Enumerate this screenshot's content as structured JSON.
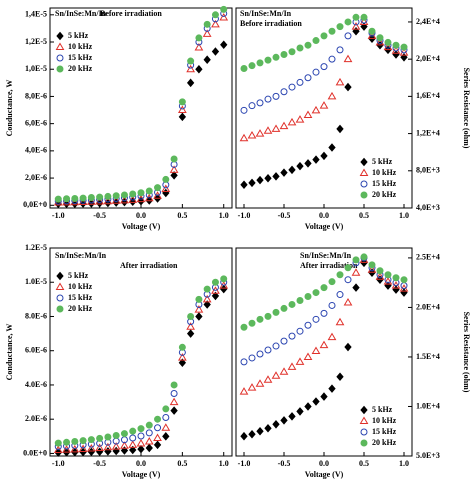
{
  "chart_data": [
    {
      "type": "scatter",
      "annotations": [
        "Sn/InSe:Mn/In",
        "Before irradiation"
      ],
      "xlabel": "Voltage (V)",
      "ylabel": "Conductance, W",
      "y_axis_side": "left",
      "legend": "upper left",
      "x": [
        -1,
        -0.9,
        -0.8,
        -0.7,
        -0.6,
        -0.5,
        -0.4,
        -0.3,
        -0.2,
        -0.1,
        0,
        0.1,
        0.2,
        0.3,
        0.4,
        0.5,
        0.6,
        0.7,
        0.8,
        0.9,
        1
      ],
      "xlim": [
        -1.1,
        1.1
      ],
      "xticks": [
        {
          "value": -1,
          "label": "-1.0"
        },
        -0.5,
        {
          "value": 0,
          "label": "0.0"
        },
        0.5,
        {
          "value": 1,
          "label": "1.0"
        }
      ],
      "ylim": [
        -2e-07,
        1.45e-05
      ],
      "yticks": [
        {
          "value": 0,
          "label": "0,0E+0"
        },
        {
          "value": 2e-06,
          "label": "2,0E-6"
        },
        {
          "value": 4e-06,
          "label": "4,0E-6"
        },
        {
          "value": 6e-06,
          "label": "6,0E-6"
        },
        {
          "value": 8e-06,
          "label": "8,0E-6"
        },
        {
          "value": 1e-05,
          "label": "1,0E-5"
        },
        {
          "value": 1.2e-05,
          "label": "1,2E-5"
        },
        {
          "value": 1.4e-05,
          "label": "1,4E-5"
        }
      ],
      "series": [
        {
          "name": "5 kHz",
          "color": "#000000",
          "marker": "diamond",
          "filled": true,
          "values": [
            1e-07,
            1e-07,
            1e-07,
            1.2e-07,
            1.3e-07,
            1.5e-07,
            1.7e-07,
            2e-07,
            2.3e-07,
            2.6e-07,
            3e-07,
            3.5e-07,
            5e-07,
            9e-07,
            2.2e-06,
            6.5e-06,
            9e-06,
            1e-05,
            1.07e-05,
            1.13e-05,
            1.18e-05
          ]
        },
        {
          "name": "10 kHz",
          "color": "#e0302a",
          "marker": "triangle",
          "filled": false,
          "values": [
            2e-07,
            2.1e-07,
            2.2e-07,
            2.4e-07,
            2.6e-07,
            2.8e-07,
            3e-07,
            3.3e-07,
            3.6e-07,
            4e-07,
            4.5e-07,
            5.2e-07,
            7e-07,
            1.2e-06,
            2.6e-06,
            7e-06,
            1e-05,
            1.16e-05,
            1.26e-05,
            1.33e-05,
            1.38e-05
          ]
        },
        {
          "name": "15 kHz",
          "color": "#2a44b0",
          "marker": "circle",
          "filled": false,
          "values": [
            3e-07,
            3.2e-07,
            3.4e-07,
            3.6e-07,
            3.9e-07,
            4.2e-07,
            4.6e-07,
            5e-07,
            5.5e-07,
            6e-07,
            6.7e-07,
            7.6e-07,
            9.5e-07,
            1.5e-06,
            3e-06,
            7.3e-06,
            1.03e-05,
            1.2e-05,
            1.3e-05,
            1.37e-05,
            1.41e-05
          ]
        },
        {
          "name": "20 kHz",
          "color": "#5cb85c",
          "marker": "circle",
          "filled": true,
          "values": [
            4.5e-07,
            4.8e-07,
            5e-07,
            5.3e-07,
            5.7e-07,
            6e-07,
            6.5e-07,
            7e-07,
            7.6e-07,
            8.3e-07,
            9.2e-07,
            1.05e-06,
            1.3e-06,
            1.9e-06,
            3.4e-06,
            7.6e-06,
            1.06e-05,
            1.23e-05,
            1.33e-05,
            1.4e-05,
            1.44e-05
          ]
        }
      ]
    },
    {
      "type": "scatter",
      "annotations": [
        "Sn/InSe:Mn/In",
        "Before irradiation"
      ],
      "xlabel": "Voltage (V)",
      "ylabel": "Series Resistance (ohm)",
      "y_axis_side": "right",
      "legend": "lower right",
      "x": [
        -1,
        -0.9,
        -0.8,
        -0.7,
        -0.6,
        -0.5,
        -0.4,
        -0.3,
        -0.2,
        -0.1,
        0,
        0.1,
        0.2,
        0.3,
        0.4,
        0.5,
        0.6,
        0.7,
        0.8,
        0.9,
        1
      ],
      "xlim": [
        -1.1,
        1.1
      ],
      "xticks": [
        {
          "value": -1,
          "label": "-1.0"
        },
        -0.5,
        {
          "value": 0,
          "label": "0.0"
        },
        0.5,
        {
          "value": 1,
          "label": "1.0"
        }
      ],
      "ylim": [
        4000,
        25500
      ],
      "yticks": [
        {
          "value": 4000,
          "label": "4,0E+3"
        },
        {
          "value": 8000,
          "label": "8,0E+3"
        },
        {
          "value": 12000,
          "label": "1,2E+4"
        },
        {
          "value": 16000,
          "label": "1,6E+4"
        },
        {
          "value": 20000,
          "label": "2,0E+4"
        },
        {
          "value": 24000,
          "label": "2,4E+4"
        }
      ],
      "series": [
        {
          "name": "5 kHz",
          "color": "#000000",
          "marker": "diamond",
          "filled": true,
          "values": [
            6500,
            6700,
            7000,
            7200,
            7400,
            7800,
            8100,
            8500,
            8800,
            9200,
            9600,
            10500,
            12500,
            17000,
            23000,
            23500,
            22200,
            21500,
            21000,
            20500,
            20200
          ]
        },
        {
          "name": "10 kHz",
          "color": "#e0302a",
          "marker": "triangle",
          "filled": false,
          "values": [
            11500,
            11800,
            12000,
            12300,
            12500,
            12800,
            13200,
            13500,
            14000,
            14500,
            15000,
            16000,
            17500,
            20000,
            23500,
            24000,
            22500,
            21800,
            21300,
            20900,
            20700
          ]
        },
        {
          "name": "15 kHz",
          "color": "#2a44b0",
          "marker": "circle",
          "filled": false,
          "values": [
            14500,
            15000,
            15300,
            15700,
            16000,
            16500,
            17000,
            17500,
            18000,
            18600,
            19200,
            20000,
            21000,
            22500,
            24000,
            24200,
            22800,
            22000,
            21500,
            21200,
            21000
          ]
        },
        {
          "name": "20 kHz",
          "color": "#5cb85c",
          "marker": "circle",
          "filled": true,
          "values": [
            19000,
            19300,
            19600,
            19900,
            20200,
            20500,
            20800,
            21200,
            21500,
            22000,
            22500,
            23000,
            23500,
            24000,
            24500,
            24500,
            23000,
            22300,
            21800,
            21500,
            21300
          ]
        }
      ]
    },
    {
      "type": "scatter",
      "annotations": [
        "Sn/InSe:Mn/In",
        "After irradiation"
      ],
      "xlabel": "Voltage (V)",
      "ylabel": "Conductance, W",
      "y_axis_side": "left",
      "legend": "upper left",
      "x": [
        -1,
        -0.9,
        -0.8,
        -0.7,
        -0.6,
        -0.5,
        -0.4,
        -0.3,
        -0.2,
        -0.1,
        0,
        0.1,
        0.2,
        0.3,
        0.4,
        0.5,
        0.6,
        0.7,
        0.8,
        0.9,
        1
      ],
      "xlim": [
        -1.1,
        1.1
      ],
      "xticks": [
        {
          "value": -1,
          "label": "-1.0"
        },
        -0.5,
        {
          "value": 0,
          "label": "0.0"
        },
        0.5,
        {
          "value": 1,
          "label": "1.0"
        }
      ],
      "ylim": [
        -1.5e-07,
        1.2e-05
      ],
      "yticks": [
        {
          "value": 0,
          "label": "0.0E+0"
        },
        {
          "value": 2e-06,
          "label": "2.0E-6"
        },
        {
          "value": 4e-06,
          "label": "4.0E-6"
        },
        {
          "value": 6e-06,
          "label": "6.0E-6"
        },
        {
          "value": 8e-06,
          "label": "8.0E-6"
        },
        {
          "value": 1e-05,
          "label": "1.0E-5"
        },
        {
          "value": 1.2e-05,
          "label": "1.2E-5"
        }
      ],
      "series": [
        {
          "name": "5 kHz",
          "color": "#000000",
          "marker": "diamond",
          "filled": true,
          "values": [
            5e-08,
            6e-08,
            7e-08,
            8e-08,
            9e-08,
            1e-07,
            1.2e-07,
            1.4e-07,
            1.7e-07,
            2e-07,
            2.5e-07,
            3.2e-07,
            5e-07,
            1e-06,
            2.5e-06,
            5.3e-06,
            7e-06,
            8e-06,
            8.7e-06,
            9.2e-06,
            9.6e-06
          ]
        },
        {
          "name": "10 kHz",
          "color": "#e0302a",
          "marker": "triangle",
          "filled": false,
          "values": [
            2e-07,
            2.2e-07,
            2.4e-07,
            2.6e-07,
            2.9e-07,
            3.2e-07,
            3.6e-07,
            4e-07,
            4.5e-07,
            5e-07,
            5.8e-07,
            7e-07,
            9e-07,
            1.5e-06,
            3e-06,
            5.6e-06,
            7.4e-06,
            8.4e-06,
            9e-06,
            9.5e-06,
            9.8e-06
          ]
        },
        {
          "name": "15 kHz",
          "color": "#2a44b0",
          "marker": "circle",
          "filled": false,
          "values": [
            4e-07,
            4.3e-07,
            4.6e-07,
            5e-07,
            5.4e-07,
            5.9e-07,
            6.5e-07,
            7.2e-07,
            8e-07,
            9e-07,
            1.02e-06,
            1.2e-06,
            1.5e-06,
            2.1e-06,
            3.5e-06,
            5.9e-06,
            7.7e-06,
            8.7e-06,
            9.3e-06,
            9.7e-06,
            1e-05
          ]
        },
        {
          "name": "20 kHz",
          "color": "#5cb85c",
          "marker": "circle",
          "filled": true,
          "values": [
            6e-07,
            6.5e-07,
            7e-07,
            7.5e-07,
            8.1e-07,
            8.8e-07,
            9.6e-07,
            1.05e-06,
            1.16e-06,
            1.3e-06,
            1.45e-06,
            1.65e-06,
            2e-06,
            2.6e-06,
            4e-06,
            6.2e-06,
            8e-06,
            9e-06,
            9.6e-06,
            1e-05,
            1.02e-05
          ]
        }
      ]
    },
    {
      "type": "scatter",
      "annotations": [
        "Sn/InSe:Mn/In",
        "After irradiation"
      ],
      "xlabel": "Voltage (V)",
      "ylabel": "Series Resistance (ohm)",
      "y_axis_side": "right",
      "legend": "lower right",
      "x": [
        -1,
        -0.9,
        -0.8,
        -0.7,
        -0.6,
        -0.5,
        -0.4,
        -0.3,
        -0.2,
        -0.1,
        0,
        0.1,
        0.2,
        0.3,
        0.4,
        0.5,
        0.6,
        0.7,
        0.8,
        0.9,
        1
      ],
      "xlim": [
        -1.1,
        1.1
      ],
      "xticks": [
        {
          "value": -1,
          "label": "-1.0"
        },
        -0.5,
        {
          "value": 0,
          "label": "0.0"
        },
        0.5,
        {
          "value": 1,
          "label": "1.0"
        }
      ],
      "ylim": [
        5000,
        26000
      ],
      "yticks": [
        {
          "value": 5000,
          "label": "5.0E+3"
        },
        {
          "value": 10000,
          "label": "1.0E+4"
        },
        {
          "value": 15000,
          "label": "1.5E+4"
        },
        {
          "value": 20000,
          "label": "2.0E+4"
        },
        {
          "value": 25000,
          "label": "2.5E+4"
        }
      ],
      "series": [
        {
          "name": "5 kHz",
          "color": "#000000",
          "marker": "diamond",
          "filled": true,
          "values": [
            7000,
            7200,
            7500,
            7800,
            8200,
            8600,
            9000,
            9500,
            10000,
            10500,
            11000,
            11800,
            13000,
            16000,
            22000,
            24500,
            23500,
            22800,
            22200,
            21800,
            21500
          ]
        },
        {
          "name": "10 kHz",
          "color": "#e0302a",
          "marker": "triangle",
          "filled": false,
          "values": [
            11500,
            11900,
            12300,
            12700,
            13100,
            13500,
            14000,
            14500,
            15000,
            15600,
            16200,
            17000,
            18500,
            20500,
            23500,
            24800,
            23800,
            23100,
            22600,
            22200,
            21900
          ]
        },
        {
          "name": "15 kHz",
          "color": "#2a44b0",
          "marker": "circle",
          "filled": false,
          "values": [
            14500,
            14900,
            15300,
            15700,
            16100,
            16600,
            17100,
            17600,
            18200,
            18800,
            19400,
            20200,
            21300,
            22800,
            24500,
            25000,
            24000,
            23300,
            22800,
            22500,
            22200
          ]
        },
        {
          "name": "20 kHz",
          "color": "#5cb85c",
          "marker": "circle",
          "filled": true,
          "values": [
            18000,
            18400,
            18800,
            19100,
            19500,
            19900,
            20300,
            20700,
            21100,
            21500,
            22000,
            22600,
            23300,
            24000,
            24800,
            25100,
            24300,
            23700,
            23300,
            23000,
            22800
          ]
        }
      ]
    }
  ]
}
